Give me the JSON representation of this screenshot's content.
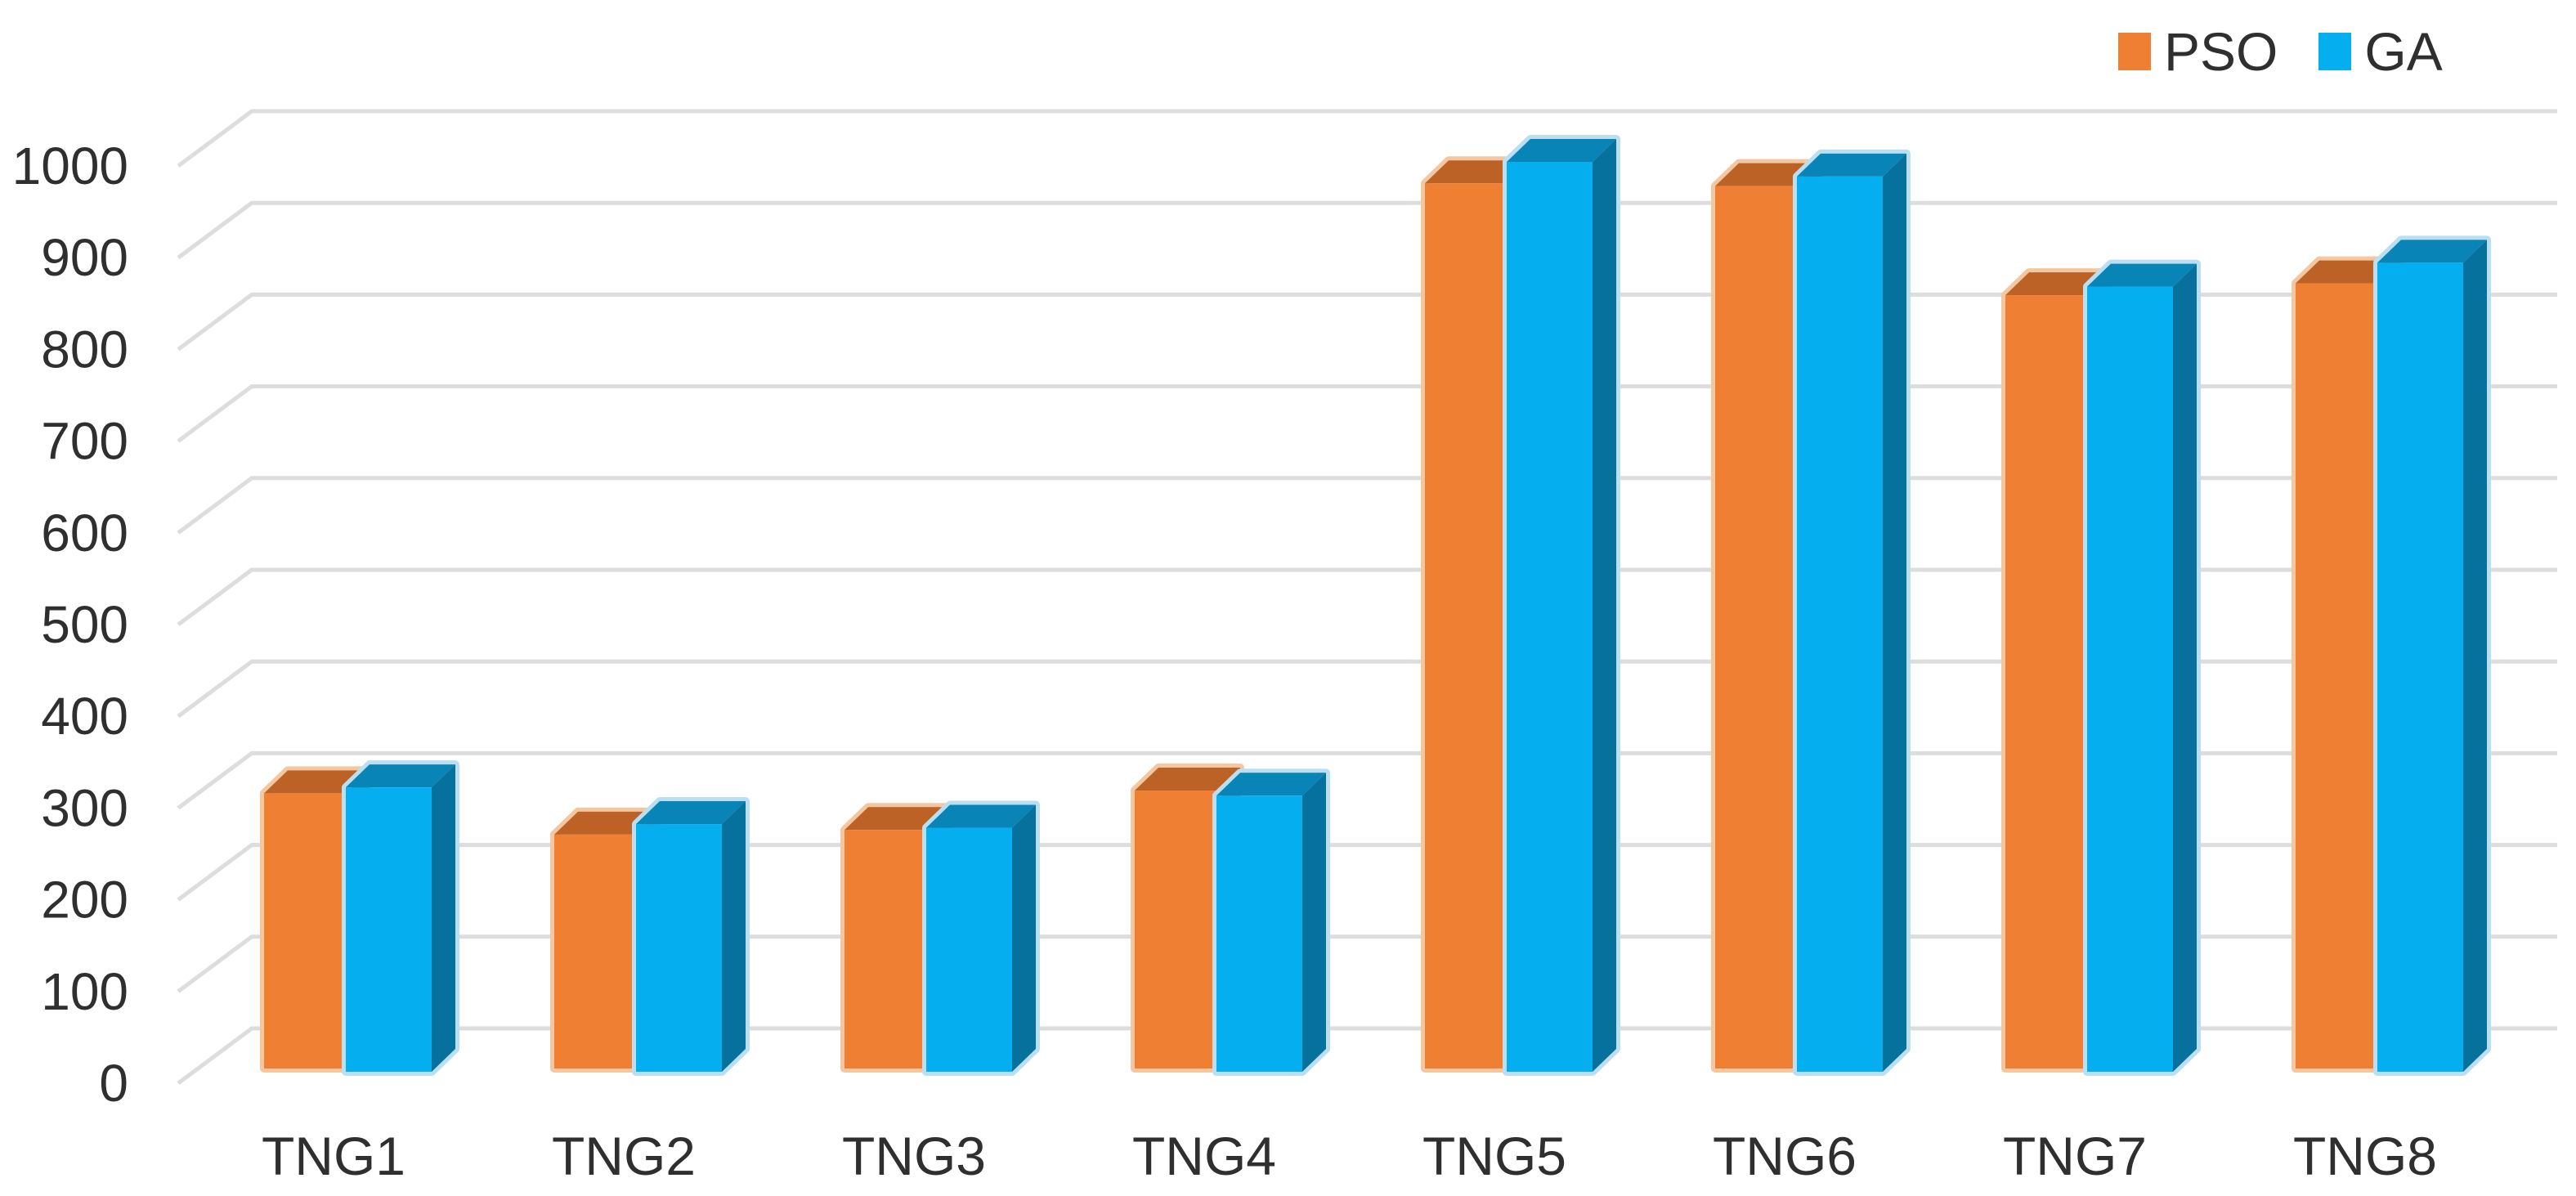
{
  "chart_data": {
    "type": "bar",
    "variant": "3d-clustered-column",
    "title": "",
    "xlabel": "",
    "ylabel": "",
    "categories": [
      "TNG1",
      "TNG2",
      "TNG3",
      "TNG4",
      "TNG5",
      "TNG6",
      "TNG7",
      "TNG8"
    ],
    "series": [
      {
        "name": "PSO",
        "color": "#EE7F33",
        "values": [
          300,
          255,
          260,
          303,
          965,
          962,
          843,
          856
        ]
      },
      {
        "name": "GA",
        "color": "#05AEEE",
        "values": [
          310,
          270,
          266,
          301,
          992,
          976,
          856,
          882
        ]
      }
    ],
    "ylim": [
      0,
      1000
    ],
    "yticks": [
      0,
      100,
      200,
      300,
      400,
      500,
      600,
      700,
      800,
      900,
      1000
    ],
    "grid": "horizontal",
    "legend_position": "top-right"
  },
  "colors": {
    "pso_front": "#EE7F33",
    "pso_top": "#BC6226",
    "pso_side": "#A5551C",
    "pso_halo": "#F4C7A0",
    "ga_front": "#05AEEE",
    "ga_top": "#0884B6",
    "ga_side": "#07719E",
    "ga_halo": "#BBDFF2",
    "gridline": "#DDDDDD",
    "text": "#2F2F2F",
    "background": "#FFFFFF"
  }
}
